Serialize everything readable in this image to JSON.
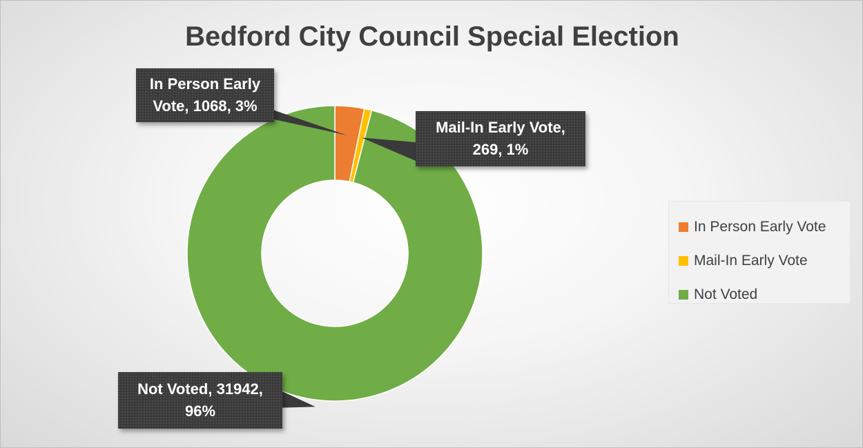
{
  "chart_data": {
    "type": "pie",
    "variant": "doughnut",
    "title": "Bedford City Council Special Election",
    "categories": [
      "In Person Early Vote",
      "Mail-In Early Vote",
      "Not Voted"
    ],
    "values": [
      1068,
      269,
      31942
    ],
    "percent_labels": [
      "3%",
      "1%",
      "96%"
    ],
    "colors": [
      "#ed7d31",
      "#ffc000",
      "#70ad47"
    ],
    "data_labels": [
      {
        "line1": "In Person Early",
        "line2": "Vote, 1068, 3%"
      },
      {
        "line1": "Mail-In Early Vote,",
        "line2": "269, 1%"
      },
      {
        "line1": "Not Voted, 31942,",
        "line2": "96%"
      }
    ],
    "legend": {
      "position": "right",
      "items": [
        "In Person Early Vote",
        "Mail-In Early Vote",
        "Not Voted"
      ]
    }
  }
}
